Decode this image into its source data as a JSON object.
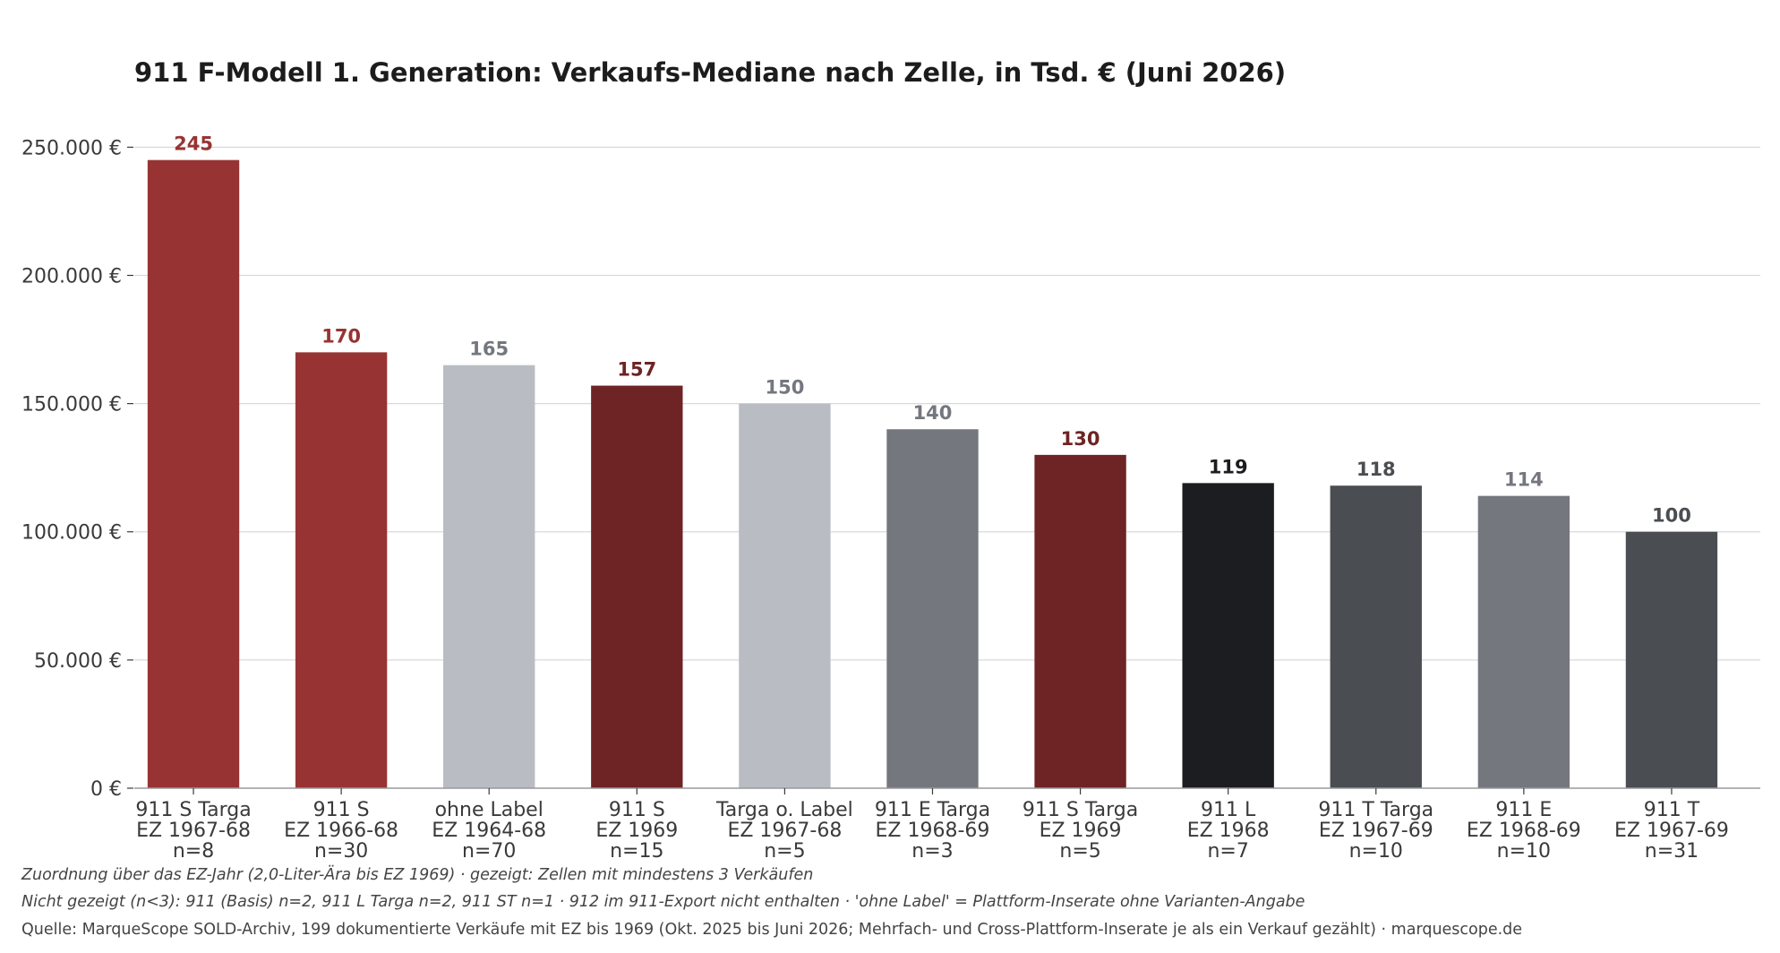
{
  "chart_data": {
    "type": "bar",
    "title": "911 F-Modell 1. Generation: Verkaufs-Mediane nach Zelle, in Tsd. € (Juni 2026)",
    "xlabel": "",
    "ylabel": "",
    "ylim": [
      0,
      262000
    ],
    "yticks": [
      0,
      50000,
      100000,
      150000,
      200000,
      250000
    ],
    "ytick_labels": [
      "0 €",
      "50.000 €",
      "100.000 €",
      "150.000 €",
      "200.000 €",
      "250.000 €"
    ],
    "grid": "horizontal",
    "categories": [
      [
        "911 S Targa",
        "EZ 1967-68",
        "n=8"
      ],
      [
        "911 S",
        "EZ 1966-68",
        "n=30"
      ],
      [
        "ohne Label",
        "EZ 1964-68",
        "n=70"
      ],
      [
        "911 S",
        "EZ 1969",
        "n=15"
      ],
      [
        "Targa o. Label",
        "EZ 1967-68",
        "n=5"
      ],
      [
        "911 E Targa",
        "EZ 1968-69",
        "n=3"
      ],
      [
        "911 S Targa",
        "EZ 1969",
        "n=5"
      ],
      [
        "911 L",
        "EZ 1968",
        "n=7"
      ],
      [
        "911 T Targa",
        "EZ 1967-69",
        "n=10"
      ],
      [
        "911 E",
        "EZ 1968-69",
        "n=10"
      ],
      [
        "911 T",
        "EZ 1967-69",
        "n=31"
      ]
    ],
    "values": [
      245000,
      170000,
      165000,
      157000,
      150000,
      140000,
      130000,
      119000,
      118000,
      114000,
      100000
    ],
    "value_labels": [
      "245",
      "170",
      "165",
      "157",
      "150",
      "140",
      "130",
      "119",
      "118",
      "114",
      "100"
    ],
    "bar_colors": [
      "#983333",
      "#983333",
      "#b9bcc3",
      "#6e2424",
      "#b9bcc3",
      "#74777e",
      "#6e2424",
      "#1c1d20",
      "#4a4d51",
      "#74777e",
      "#4a4d51"
    ],
    "label_colors": [
      "#983333",
      "#983333",
      "#74777e",
      "#6e2424",
      "#74777e",
      "#74777e",
      "#6e2424",
      "#1c1d20",
      "#4a4d51",
      "#74777e",
      "#4a4d51"
    ]
  },
  "notes": {
    "line1": "Zuordnung über das EZ-Jahr (2,0-Liter-Ära bis EZ 1969) · gezeigt: Zellen mit mindestens 3 Verkäufen",
    "line2": "Nicht gezeigt (n<3): 911 (Basis) n=2, 911 L Targa n=2, 911 ST n=1 · 912 im 911-Export nicht enthalten · 'ohne Label' = Plattform-Inserate ohne Varianten-Angabe",
    "source": "Quelle: MarqueScope SOLD-Archiv, 199 dokumentierte Verkäufe mit EZ bis 1969 (Okt. 2025 bis Juni 2026; Mehrfach- und Cross-Plattform-Inserate je als ein Verkauf gezählt) · marquescope.de"
  }
}
